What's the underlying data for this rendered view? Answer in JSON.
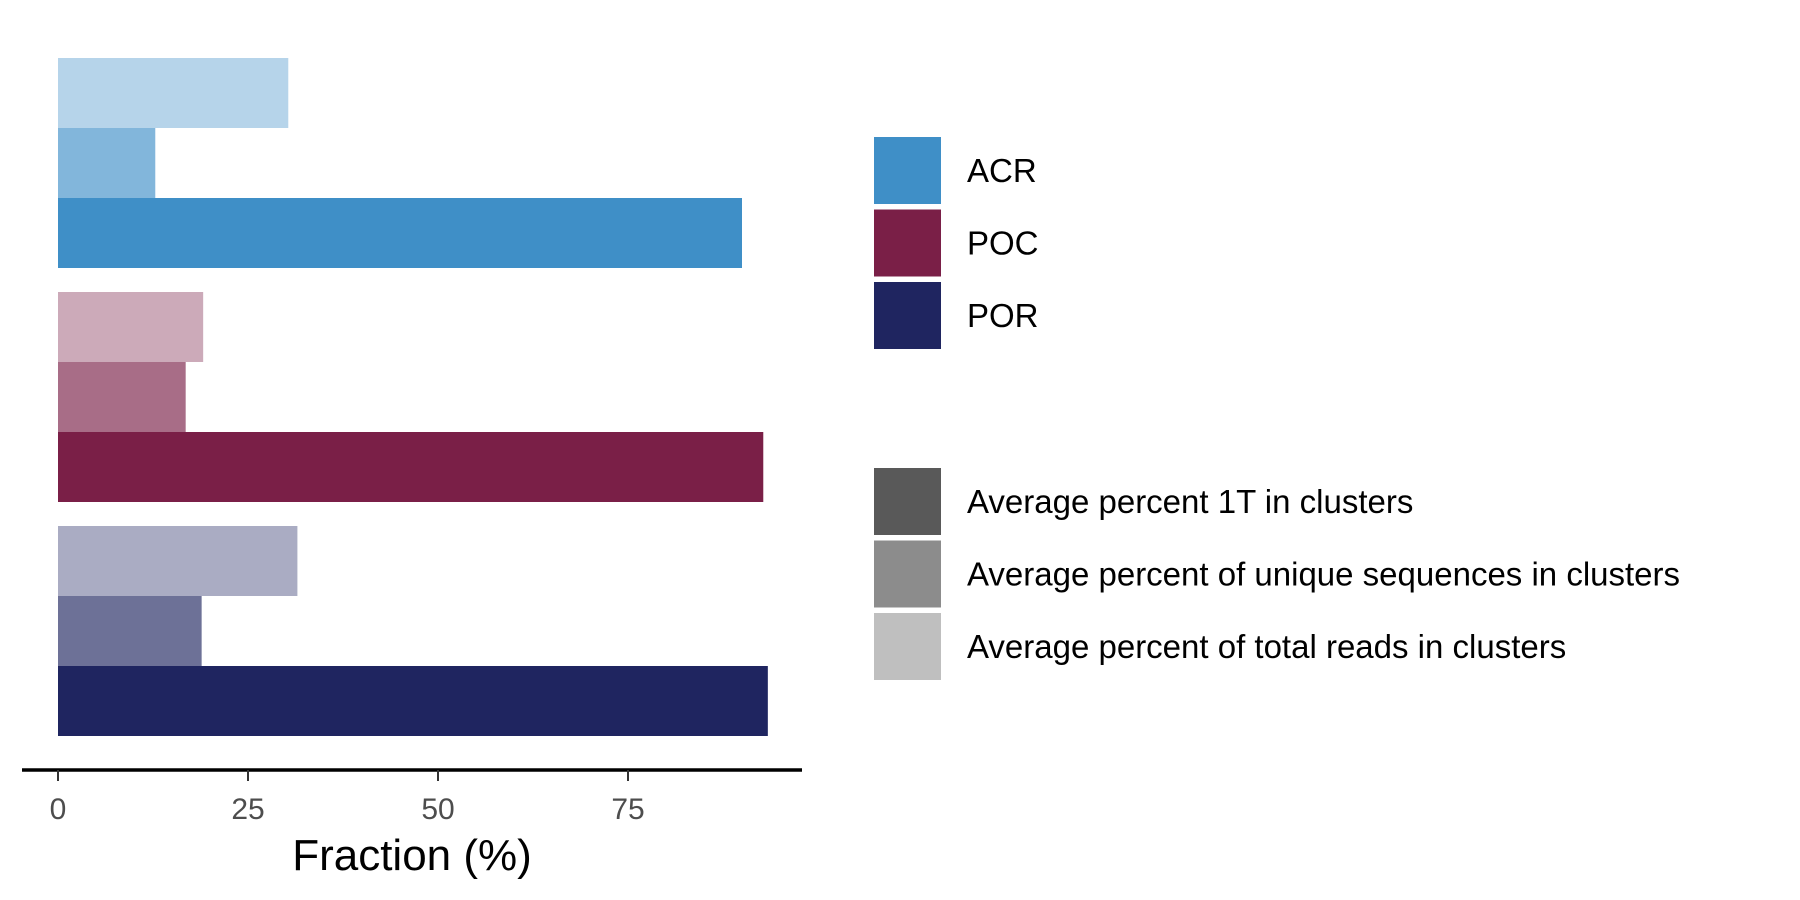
{
  "chart_data": {
    "type": "bar",
    "orientation": "horizontal",
    "xlabel": "Fraction (%)",
    "ylabel": "",
    "xlim": [
      0,
      98
    ],
    "xticks": [
      0,
      25,
      50,
      75
    ],
    "xtick_labels": [
      "0",
      "25",
      "50",
      "75"
    ],
    "grid": false,
    "legend_position": "right",
    "groups": [
      {
        "name": "ACR",
        "color": "#3f8fc7",
        "values": {
          "Average percent 1T in clusters": 90,
          "Average percent of unique sequences in clusters": 12.8,
          "Average percent of total reads in clusters": 30.3
        }
      },
      {
        "name": "POC",
        "color": "#7a1f47",
        "values": {
          "Average percent 1T in clusters": 92.8,
          "Average percent of unique sequences in clusters": 16.8,
          "Average percent of total reads in clusters": 19.1
        }
      },
      {
        "name": "POR",
        "color": "#1f2560",
        "values": {
          "Average percent 1T in clusters": 93.4,
          "Average percent of unique sequences in clusters": 18.9,
          "Average percent of total reads in clusters": 31.5
        }
      }
    ],
    "measures": [
      {
        "name": "Average percent 1T in clusters",
        "opacity": 1.0,
        "legend_color": "#595959"
      },
      {
        "name": "Average percent of unique sequences in clusters",
        "opacity": 0.65,
        "legend_color": "#8c8c8c"
      },
      {
        "name": "Average percent of total reads in clusters",
        "opacity": 0.38,
        "legend_color": "#bfbfbf"
      }
    ]
  }
}
